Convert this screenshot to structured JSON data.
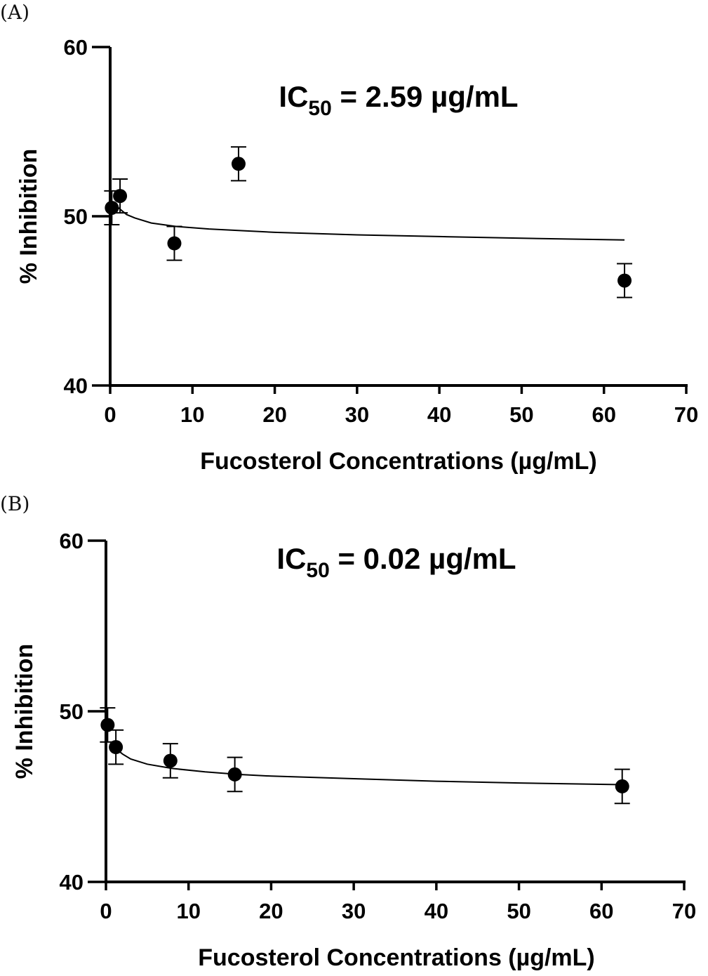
{
  "chart_data": [
    {
      "type": "scatter",
      "panel_label": "(A)",
      "annotation": {
        "main": "IC",
        "sub": "50",
        "rest": " = 2.59 µg/mL"
      },
      "xlabel": "Fucosterol Concentrations (µg/mL)",
      "ylabel": "% Inhibition",
      "xlim": [
        0,
        70
      ],
      "ylim": [
        40,
        60
      ],
      "xticks": [
        0,
        10,
        20,
        30,
        40,
        50,
        60,
        70
      ],
      "yticks": [
        40,
        50,
        60
      ],
      "grid": false,
      "series": [
        {
          "x": [
            0.2,
            1.2,
            7.8,
            15.6,
            62.5
          ],
          "y": [
            50.5,
            51.2,
            48.4,
            53.1,
            46.2
          ],
          "error": [
            1.0,
            1.0,
            1.0,
            1.0,
            1.0
          ]
        }
      ],
      "fit_curve": {
        "x": [
          0.5,
          1,
          2,
          3,
          5,
          8,
          12,
          16,
          20,
          30,
          40,
          50,
          62.5
        ],
        "y": [
          50.8,
          50.5,
          50.1,
          49.9,
          49.6,
          49.4,
          49.25,
          49.15,
          49.05,
          48.9,
          48.8,
          48.7,
          48.6
        ]
      }
    },
    {
      "type": "scatter",
      "panel_label": "(B)",
      "annotation": {
        "main": "IC",
        "sub": "50",
        "rest": " = 0.02 µg/mL"
      },
      "xlabel": "Fucosterol Concentrations (µg/mL)",
      "ylabel": "% Inhibition",
      "xlim": [
        0,
        70
      ],
      "ylim": [
        40,
        60
      ],
      "xticks": [
        0,
        10,
        20,
        30,
        40,
        50,
        60,
        70
      ],
      "yticks": [
        40,
        50,
        60
      ],
      "grid": false,
      "series": [
        {
          "x": [
            0.2,
            1.2,
            7.8,
            15.6,
            62.5
          ],
          "y": [
            49.2,
            47.9,
            47.1,
            46.3,
            45.6
          ],
          "error": [
            1.0,
            1.0,
            1.0,
            1.0,
            1.0
          ]
        }
      ],
      "fit_curve": {
        "x": [
          1,
          2,
          3,
          5,
          8,
          12,
          16,
          20,
          30,
          40,
          50,
          62.5
        ],
        "y": [
          47.9,
          47.5,
          47.2,
          46.9,
          46.65,
          46.45,
          46.3,
          46.2,
          46.05,
          45.9,
          45.8,
          45.7
        ]
      }
    }
  ]
}
